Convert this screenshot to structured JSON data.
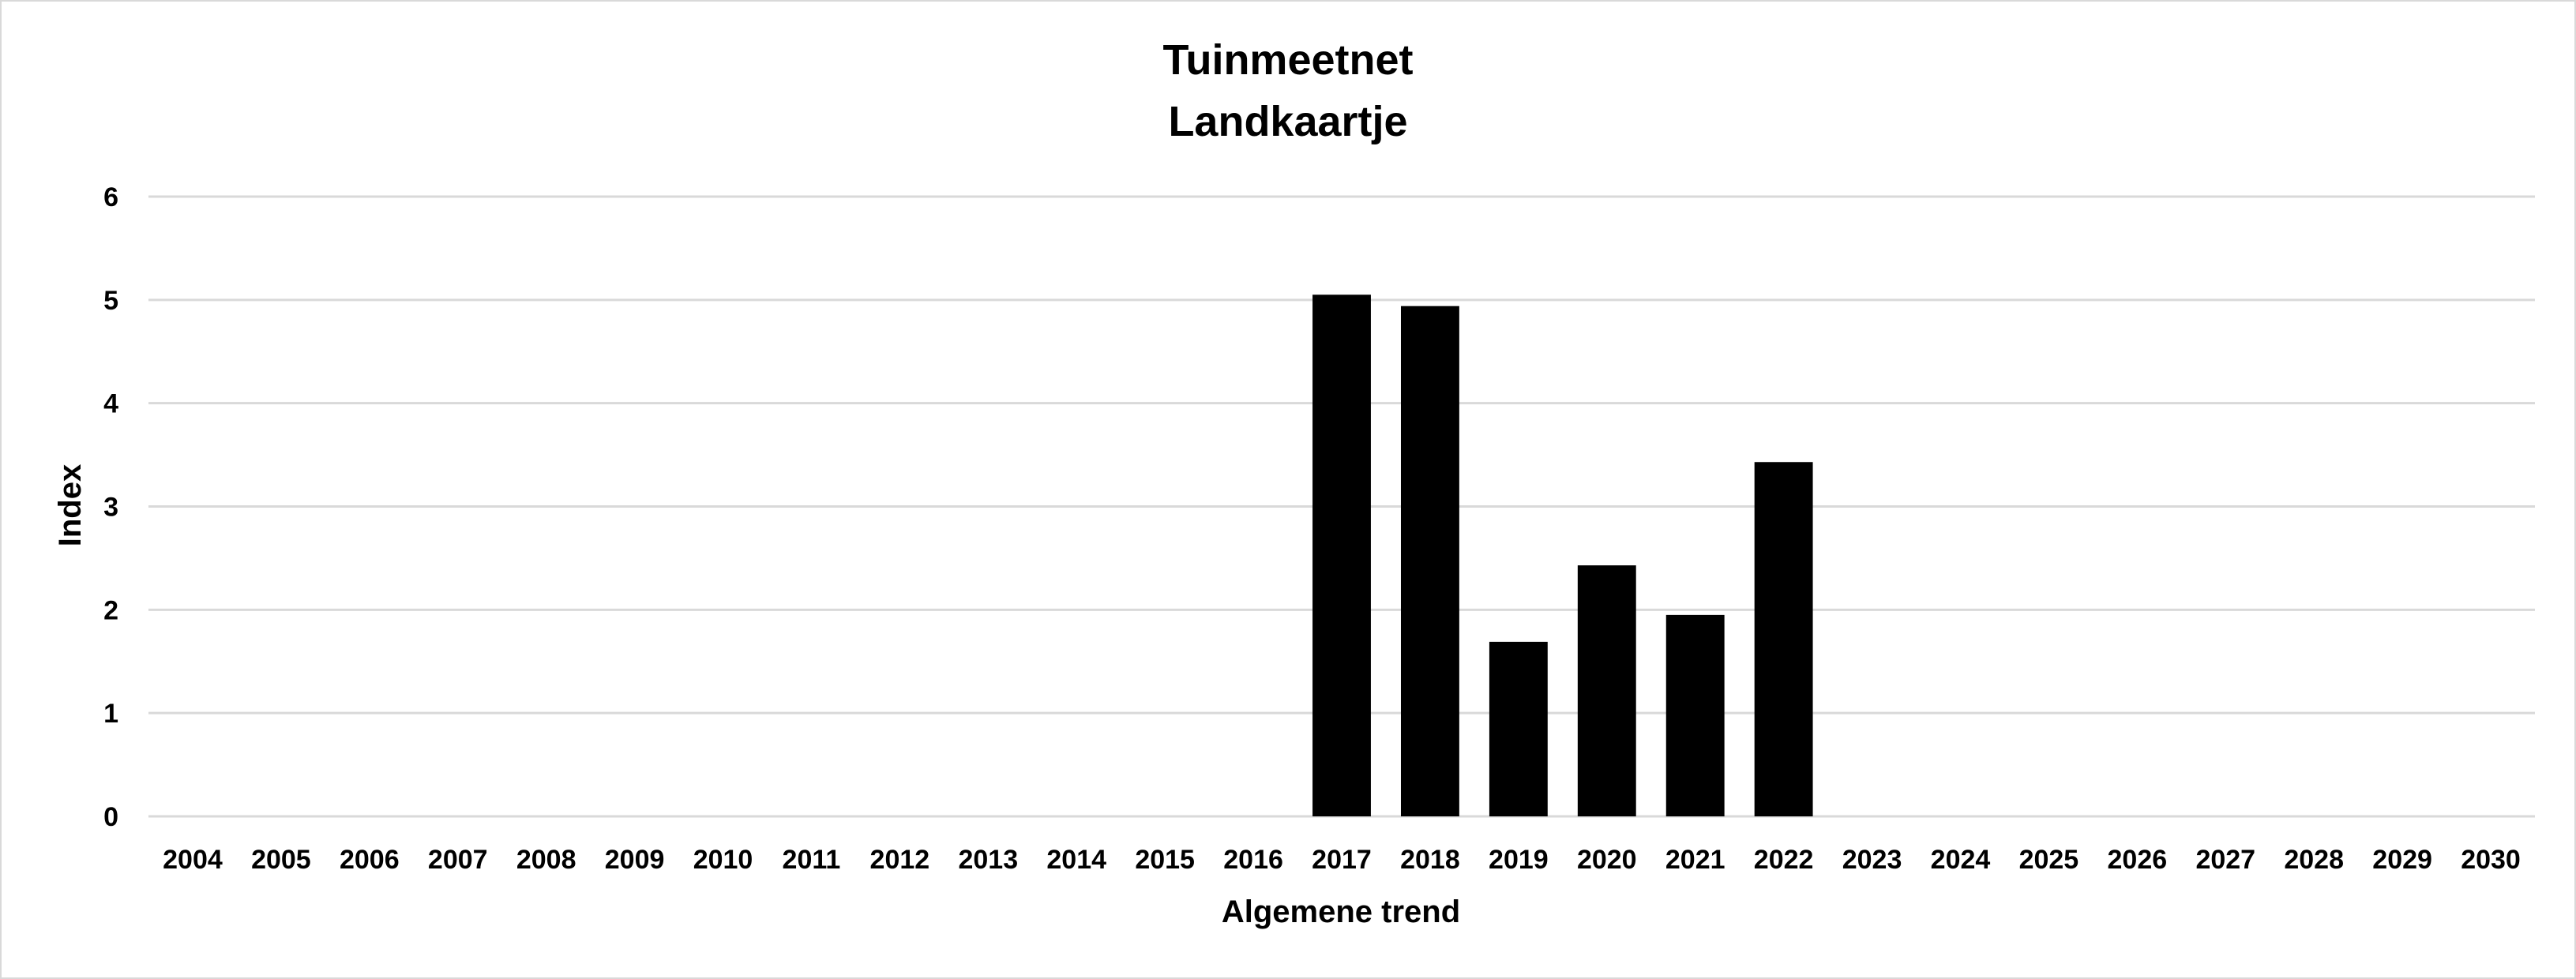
{
  "chart_data": {
    "type": "bar",
    "title": "Tuinmeetnet",
    "subtitle": "Landkaartje",
    "xlabel": "Algemene trend",
    "ylabel": "Index",
    "ylim": [
      0,
      6
    ],
    "yticks": [
      "0",
      "1",
      "2",
      "3",
      "4",
      "5",
      "6"
    ],
    "grid": true,
    "legend": "none",
    "bar_color": "#000000",
    "gridline_color": "#d9d9d9",
    "categories": [
      "2004",
      "2005",
      "2006",
      "2007",
      "2008",
      "2009",
      "2010",
      "2011",
      "2012",
      "2013",
      "2014",
      "2015",
      "2016",
      "2017",
      "2018",
      "2019",
      "2020",
      "2021",
      "2022",
      "2023",
      "2024",
      "2025",
      "2026",
      "2027",
      "2028",
      "2029",
      "2030"
    ],
    "values": [
      null,
      null,
      null,
      null,
      null,
      null,
      null,
      null,
      null,
      null,
      null,
      null,
      null,
      5.05,
      4.94,
      1.69,
      2.43,
      1.95,
      3.43,
      null,
      null,
      null,
      null,
      null,
      null,
      null,
      null
    ]
  }
}
